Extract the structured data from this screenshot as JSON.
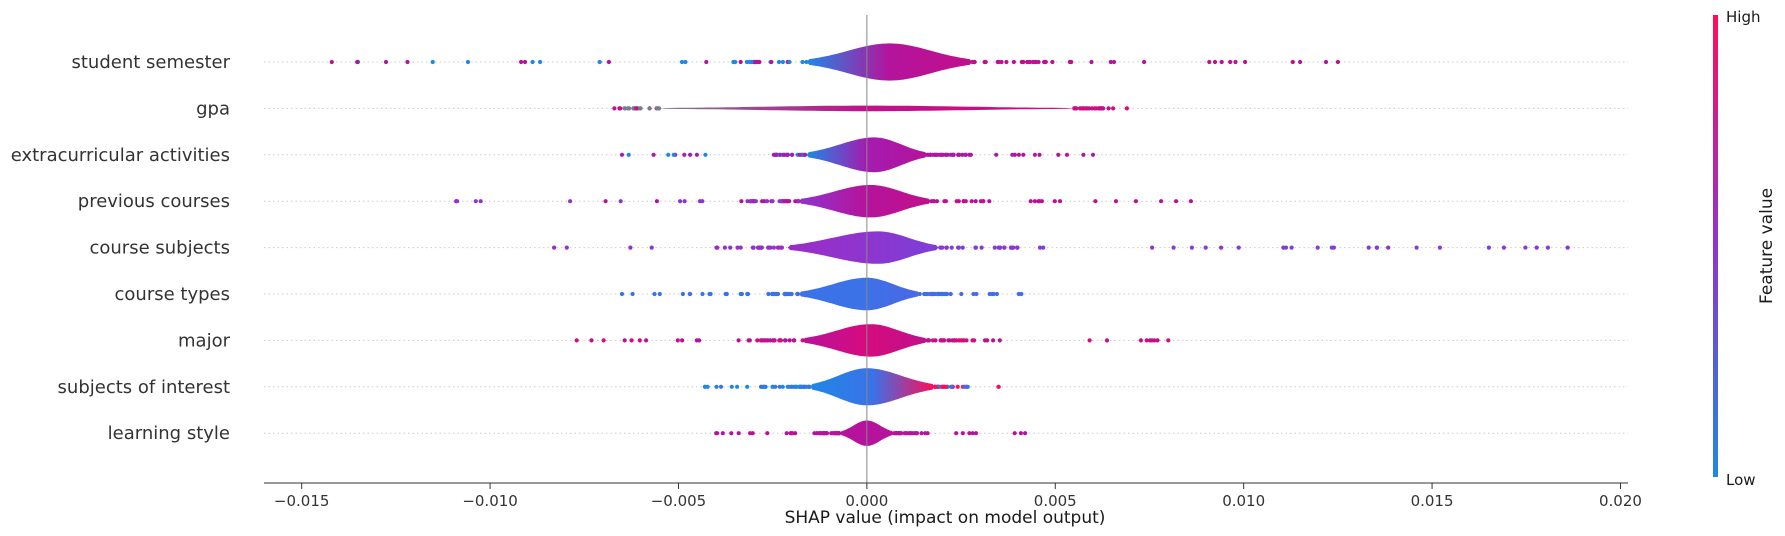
{
  "chart_data": {
    "type": "violin",
    "xlabel": "SHAP value (impact on model output)",
    "xlim": [
      -0.016,
      0.0202
    ],
    "xticks": [
      -0.015,
      -0.01,
      -0.005,
      0.0,
      0.005,
      0.01,
      0.015,
      0.02
    ],
    "xtick_labels": [
      "−0.015",
      "−0.010",
      "−0.005",
      "0.000",
      "0.005",
      "0.010",
      "0.015",
      "0.020"
    ],
    "colorbar": {
      "label": "Feature value",
      "high": "High",
      "low": "Low",
      "low_color": "#1E88E5",
      "high_color": "#FF0D57"
    },
    "features": [
      {
        "name": "student semester",
        "min": -0.0142,
        "max": 0.0125,
        "peak": 0.0006,
        "left": -0.0016,
        "right": 0.0028,
        "height": 0.8,
        "colors": [
          "#1E88E5",
          "#B5139C",
          "#C0108C"
        ]
      },
      {
        "name": "gpa",
        "min": -0.0067,
        "max": 0.0069,
        "peak": 0.0,
        "left": -0.0055,
        "right": 0.0055,
        "height": 0.12,
        "colors": [
          "#7A7A90",
          "#C0108C",
          "#D60B7E"
        ]
      },
      {
        "name": "extracurricular activities",
        "min": -0.0065,
        "max": 0.006,
        "peak": 0.0002,
        "left": -0.0016,
        "right": 0.0016,
        "height": 0.75,
        "colors": [
          "#1E88E5",
          "#A51BB0",
          "#B5139C"
        ]
      },
      {
        "name": "previous courses",
        "min": -0.0109,
        "max": 0.0086,
        "peak": 0.0001,
        "left": -0.0018,
        "right": 0.0017,
        "height": 0.7,
        "colors": [
          "#8E35CE",
          "#B5139C",
          "#C0108C"
        ]
      },
      {
        "name": "course subjects",
        "min": -0.0083,
        "max": 0.0186,
        "peak": 0.0003,
        "left": -0.0021,
        "right": 0.0019,
        "height": 0.7,
        "colors": [
          "#9A2DC5",
          "#8E35CE",
          "#7C3FD8"
        ]
      },
      {
        "name": "course types",
        "min": -0.0065,
        "max": 0.0041,
        "peak": 0.0,
        "left": -0.0018,
        "right": 0.0014,
        "height": 0.7,
        "colors": [
          "#3B72E8",
          "#3B72E8",
          "#4A68E5"
        ]
      },
      {
        "name": "major",
        "min": -0.0077,
        "max": 0.008,
        "peak": 0.0001,
        "left": -0.0017,
        "right": 0.0016,
        "height": 0.7,
        "colors": [
          "#B5139C",
          "#D60B7E",
          "#C0108C"
        ]
      },
      {
        "name": "subjects of interest",
        "min": -0.0043,
        "max": 0.0035,
        "peak": 0.0,
        "left": -0.0015,
        "right": 0.0018,
        "height": 0.8,
        "colors": [
          "#1E88E5",
          "#3B72E8",
          "#FF0D57"
        ]
      },
      {
        "name": "learning style",
        "min": -0.004,
        "max": 0.0042,
        "peak": 0.0,
        "left": -0.0007,
        "right": 0.0007,
        "height": 0.55,
        "colors": [
          "#B5139C",
          "#B5139C",
          "#B5139C"
        ]
      }
    ]
  }
}
